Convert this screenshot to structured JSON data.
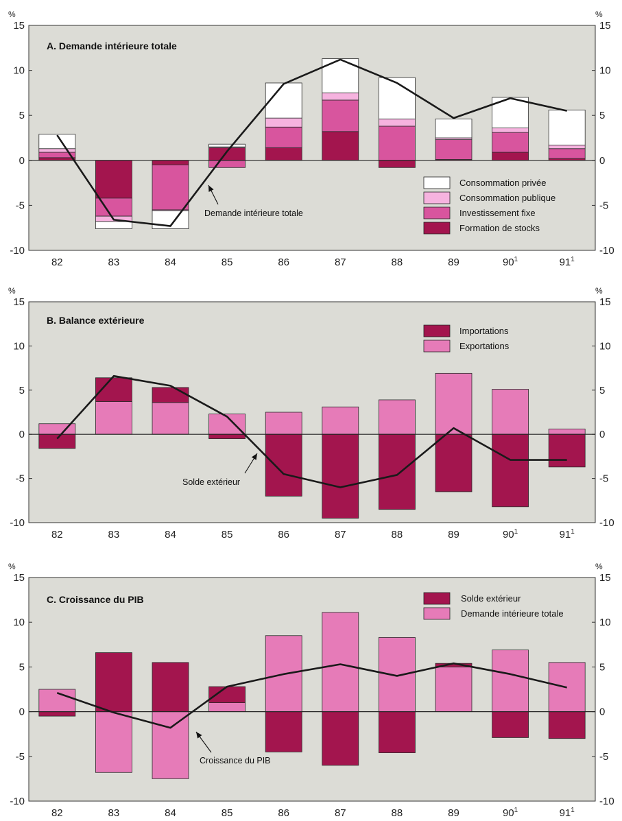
{
  "colors": {
    "panel_bg": "#dcdcd6",
    "prive": "#ffffff",
    "publique": "#f6b3df",
    "invest": "#d8559e",
    "stocks": "#a3154e",
    "export": "#e67bb8",
    "import": "#a3154e",
    "line": "#1a1a1a"
  },
  "chart_data": [
    {
      "type": "bar",
      "title": "A.   Demande intérieure totale",
      "stacked": true,
      "unit_left": "%",
      "unit_right": "%",
      "categories": [
        "82",
        "83",
        "84",
        "85",
        "86",
        "87",
        "88",
        "89",
        "90",
        "91"
      ],
      "category_superscripts": [
        "",
        "",
        "",
        "",
        "",
        "",
        "",
        "",
        "1",
        "1"
      ],
      "ylim": [
        -10,
        15
      ],
      "yticks": [
        "-10",
        "-5",
        "0",
        "5",
        "10",
        "15"
      ],
      "series": [
        {
          "name": "Formation de stocks",
          "color_key": "stocks",
          "values": [
            0.3,
            -4.2,
            -0.5,
            1.4,
            1.4,
            3.2,
            -0.8,
            0.1,
            0.9,
            0.2
          ]
        },
        {
          "name": "Investissement fixe",
          "color_key": "invest",
          "values": [
            0.6,
            -2.0,
            -5.0,
            -0.8,
            2.3,
            3.5,
            3.8,
            2.2,
            2.2,
            1.1
          ]
        },
        {
          "name": "Consommation publique",
          "color_key": "publique",
          "values": [
            0.4,
            -0.6,
            -0.1,
            0.1,
            1.0,
            0.8,
            0.8,
            0.2,
            0.5,
            0.4
          ]
        },
        {
          "name": "Consommation privée",
          "color_key": "prive",
          "values": [
            1.6,
            -0.8,
            -2.0,
            0.3,
            3.9,
            3.8,
            4.6,
            2.1,
            3.4,
            3.9
          ]
        }
      ],
      "line": {
        "name": "Demande intérieure totale",
        "values": [
          2.8,
          -6.6,
          -7.3,
          1.0,
          8.5,
          11.2,
          8.6,
          4.7,
          6.9,
          5.5
        ]
      },
      "annotation": "Demande intérieure totale",
      "legend_position": "bottom-right"
    },
    {
      "type": "bar",
      "title": "B.   Balance extérieure",
      "stacked": true,
      "unit_left": "%",
      "unit_right": "%",
      "categories": [
        "82",
        "83",
        "84",
        "85",
        "86",
        "87",
        "88",
        "89",
        "90",
        "91"
      ],
      "category_superscripts": [
        "",
        "",
        "",
        "",
        "",
        "",
        "",
        "",
        "1",
        "1"
      ],
      "ylim": [
        -10,
        15
      ],
      "yticks": [
        "-10",
        "-5",
        "0",
        "5",
        "10",
        "15"
      ],
      "series": [
        {
          "name": "Exportations",
          "color_key": "export",
          "values": [
            1.2,
            3.7,
            3.6,
            2.3,
            2.5,
            3.1,
            3.9,
            6.9,
            5.1,
            0.6
          ]
        },
        {
          "name": "Importations",
          "color_key": "import",
          "values": [
            -1.6,
            2.7,
            1.7,
            -0.5,
            -7.0,
            -9.5,
            -8.5,
            -6.5,
            -8.2,
            -3.7
          ]
        }
      ],
      "line": {
        "name": "Solde extérieur",
        "values": [
          -0.5,
          6.6,
          5.5,
          2.0,
          -4.5,
          -6.0,
          -4.6,
          0.7,
          -2.9,
          -2.9
        ]
      },
      "annotation": "Solde extérieur",
      "legend_position": "top-right"
    },
    {
      "type": "bar",
      "title": "C.   Croissance du PIB",
      "stacked": true,
      "unit_left": "%",
      "unit_right": "%",
      "categories": [
        "82",
        "83",
        "84",
        "85",
        "86",
        "87",
        "88",
        "89",
        "90",
        "91"
      ],
      "category_superscripts": [
        "",
        "",
        "",
        "",
        "",
        "",
        "",
        "",
        "1",
        "1"
      ],
      "ylim": [
        -10,
        15
      ],
      "yticks": [
        "-10",
        "-5",
        "0",
        "5",
        "10",
        "15"
      ],
      "series": [
        {
          "name": "Demande intérieure totale",
          "color_key": "export",
          "values": [
            2.5,
            -6.8,
            -7.5,
            1.0,
            8.5,
            11.1,
            8.3,
            5.0,
            6.9,
            5.5
          ]
        },
        {
          "name": "Solde extérieur",
          "color_key": "import",
          "values": [
            -0.5,
            6.6,
            5.5,
            1.8,
            -4.5,
            -6.0,
            -4.6,
            0.4,
            -2.9,
            -3.0
          ]
        }
      ],
      "line": {
        "name": "Croissance du PIB",
        "values": [
          2.1,
          -0.1,
          -1.8,
          2.8,
          4.2,
          5.3,
          4.0,
          5.4,
          4.2,
          2.7
        ]
      },
      "annotation": "Croissance du PIB",
      "legend_position": "top-right"
    }
  ]
}
